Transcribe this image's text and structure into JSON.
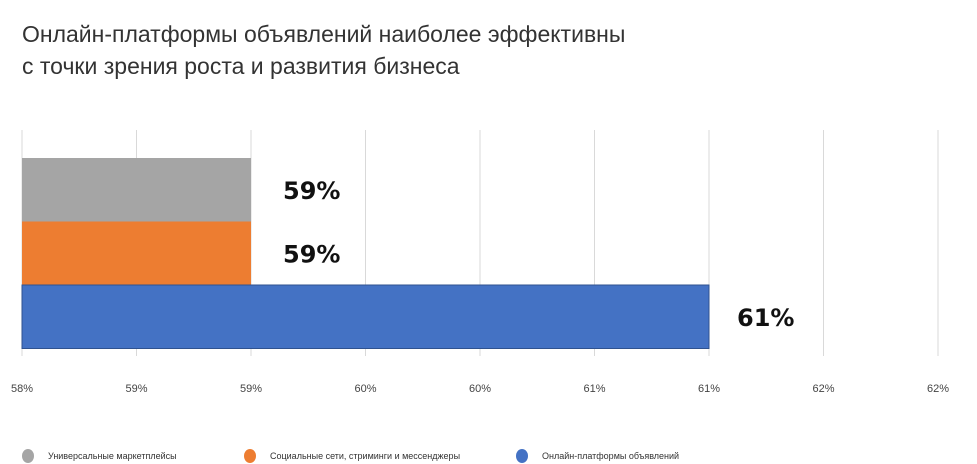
{
  "chart_data": {
    "type": "bar",
    "orientation": "horizontal",
    "title_lines": [
      "Онлайн-платформы объявлений наиболее эффективны",
      "с точки зрения роста и развития бизнеса"
    ],
    "categories": [
      "Универсальные маркетплейсы",
      "Социальные сети, стриминги и мессенджеры",
      "Онлайн-платформы объявлений"
    ],
    "values": [
      59,
      59,
      61
    ],
    "data_labels": [
      "59%",
      "59%",
      "61%"
    ],
    "colors": [
      "#a5a5a5",
      "#ed7d31",
      "#4472c4"
    ],
    "xlim": [
      58,
      62
    ],
    "x_ticks": [
      58,
      58.5,
      59,
      59.5,
      60,
      60.5,
      61,
      61.5,
      62
    ],
    "x_tick_labels": [
      "58%",
      "59%",
      "59%",
      "60%",
      "60%",
      "61%",
      "61%",
      "62%",
      "62%"
    ],
    "grid": true,
    "legend_position": "bottom"
  }
}
